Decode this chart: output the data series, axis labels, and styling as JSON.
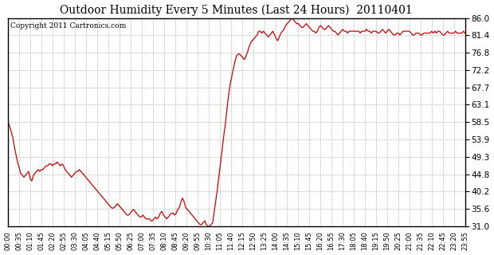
{
  "title": "Outdoor Humidity Every 5 Minutes (Last 24 Hours)  20110401",
  "copyright": "Copyright 2011 Cartronics.com",
  "line_color": "#cc0000",
  "background_color": "#ffffff",
  "plot_background": "#ffffff",
  "grid_color": "#bbbbbb",
  "yticks": [
    31.0,
    35.6,
    40.2,
    44.8,
    49.3,
    53.9,
    58.5,
    63.1,
    67.7,
    72.2,
    76.8,
    81.4,
    86.0
  ],
  "ylim": [
    31.0,
    86.0
  ],
  "xtick_labels": [
    "00:00",
    "00:35",
    "01:10",
    "01:45",
    "02:20",
    "02:55",
    "03:30",
    "04:05",
    "04:40",
    "05:15",
    "05:50",
    "06:25",
    "07:00",
    "07:35",
    "08:10",
    "08:45",
    "09:20",
    "09:55",
    "10:30",
    "11:05",
    "11:40",
    "12:15",
    "12:50",
    "13:25",
    "14:00",
    "14:35",
    "15:10",
    "15:45",
    "16:20",
    "16:55",
    "17:30",
    "18:05",
    "18:40",
    "19:15",
    "19:50",
    "20:25",
    "21:00",
    "21:35",
    "22:10",
    "22:45",
    "23:20",
    "23:55"
  ],
  "humidity_values": [
    58.5,
    57.5,
    56.0,
    54.5,
    52.0,
    50.0,
    48.0,
    46.5,
    45.0,
    44.5,
    44.0,
    44.5,
    45.0,
    45.5,
    43.5,
    43.0,
    44.5,
    45.0,
    45.5,
    46.0,
    45.5,
    46.0,
    46.0,
    46.5,
    47.0,
    47.0,
    47.5,
    47.5,
    47.0,
    47.5,
    47.5,
    48.0,
    47.5,
    47.0,
    47.5,
    47.0,
    46.0,
    45.5,
    45.0,
    44.5,
    44.0,
    44.5,
    45.0,
    45.5,
    45.5,
    46.0,
    45.5,
    45.0,
    44.5,
    44.0,
    43.5,
    43.0,
    42.5,
    42.0,
    41.5,
    41.0,
    40.5,
    40.0,
    39.5,
    39.0,
    38.5,
    38.0,
    37.5,
    37.0,
    36.5,
    36.0,
    35.8,
    36.0,
    36.5,
    37.0,
    36.5,
    36.0,
    35.5,
    35.0,
    34.5,
    34.0,
    34.0,
    34.5,
    35.0,
    35.5,
    35.0,
    34.5,
    34.0,
    33.5,
    33.5,
    34.0,
    33.5,
    33.0,
    33.0,
    33.0,
    32.5,
    32.5,
    33.0,
    33.5,
    33.0,
    33.5,
    34.5,
    35.0,
    34.0,
    33.5,
    33.0,
    33.5,
    34.0,
    34.5,
    34.5,
    34.0,
    34.5,
    35.5,
    36.0,
    37.5,
    38.5,
    37.5,
    36.0,
    35.5,
    35.0,
    34.5,
    34.0,
    33.5,
    33.0,
    32.5,
    32.0,
    31.5,
    31.5,
    32.0,
    32.5,
    31.5,
    31.0,
    31.0,
    31.5,
    32.0,
    35.0,
    38.0,
    41.0,
    44.5,
    48.0,
    51.5,
    55.0,
    58.0,
    62.0,
    65.5,
    68.5,
    70.5,
    72.5,
    74.5,
    76.0,
    76.5,
    76.5,
    76.0,
    75.5,
    75.0,
    76.0,
    77.0,
    78.5,
    79.5,
    80.0,
    80.5,
    81.0,
    81.5,
    82.5,
    82.5,
    82.0,
    82.5,
    82.0,
    81.5,
    81.0,
    81.5,
    82.0,
    82.5,
    81.5,
    80.5,
    80.0,
    81.0,
    82.0,
    82.5,
    83.0,
    84.0,
    84.5,
    85.0,
    85.5,
    86.0,
    85.5,
    85.0,
    84.5,
    84.5,
    84.0,
    83.5,
    83.5,
    84.0,
    84.5,
    84.0,
    83.5,
    83.0,
    82.5,
    82.5,
    82.0,
    82.5,
    83.5,
    84.0,
    83.5,
    83.0,
    83.0,
    83.5,
    84.0,
    83.5,
    83.0,
    82.5,
    82.5,
    82.0,
    81.5,
    82.0,
    82.5,
    83.0,
    82.5,
    82.5,
    82.0,
    82.5,
    82.5,
    82.5,
    82.5,
    82.5,
    82.5,
    82.5,
    82.0,
    82.5,
    82.5,
    82.5,
    83.0,
    82.5,
    82.5,
    82.0,
    82.5,
    82.5,
    82.5,
    82.0,
    82.0,
    82.5,
    83.0,
    82.5,
    82.0,
    82.5,
    83.0,
    82.5,
    82.0,
    81.5,
    81.5,
    82.0,
    82.0,
    81.5,
    82.0,
    82.5,
    82.5,
    82.5,
    82.5,
    82.5,
    82.0,
    81.5,
    81.5,
    82.0,
    82.0,
    82.0,
    81.5,
    81.5,
    82.0,
    82.0,
    82.0,
    82.0,
    82.0,
    82.5,
    82.0,
    82.5,
    82.0,
    82.5,
    82.5,
    82.0,
    81.5,
    81.5,
    82.0,
    82.5,
    82.0,
    82.0,
    82.0,
    82.0,
    82.5,
    82.0,
    82.0,
    82.0,
    82.0,
    82.5,
    82.0
  ]
}
